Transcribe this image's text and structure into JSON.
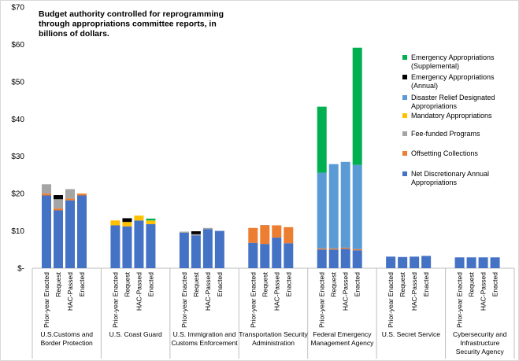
{
  "chart_data": {
    "type": "bar",
    "stacked": true,
    "title": [
      "Budget authority controlled for reprogramming",
      "through appropriations committee reports, in",
      "billions of dollars."
    ],
    "ylim": [
      0,
      70
    ],
    "yticks": [
      0,
      10,
      20,
      30,
      40,
      50,
      60,
      70
    ],
    "ytick_labels": [
      "$-",
      "$10",
      "$20",
      "$30",
      "$40",
      "$50",
      "$60",
      "$70"
    ],
    "grid": false,
    "legend_position": "right",
    "bar_labels": [
      "Prior-year Enacted",
      "Request",
      "HAC-Passed",
      "Enacted"
    ],
    "groups": [
      {
        "label": [
          "U.S.Customs and",
          "Border Protection"
        ]
      },
      {
        "label": [
          "U.S. Coast Guard"
        ]
      },
      {
        "label": [
          "U.S. Immigration and",
          "Customs Enforcement"
        ]
      },
      {
        "label": [
          "Transportation Security",
          "Administration"
        ]
      },
      {
        "label": [
          "Federal Emergency",
          "Management Agency"
        ]
      },
      {
        "label": [
          "U.S. Secret Service"
        ]
      },
      {
        "label": [
          "Cybersecurity and",
          "Infrastructure",
          "Security Agency"
        ]
      }
    ],
    "series": [
      {
        "name": [
          "Net Discretionary Annual",
          "Appropriations"
        ],
        "color": "#4472C4",
        "values": [
          [
            19.5,
            15.5,
            18.2,
            19.5
          ],
          [
            11.5,
            11.2,
            12.8,
            11.8
          ],
          [
            9.5,
            8.8,
            10.5,
            10.0
          ],
          [
            6.8,
            6.5,
            8.2,
            6.7
          ],
          [
            5.0,
            5.0,
            5.2,
            4.8
          ],
          [
            3.1,
            3.0,
            3.1,
            3.3
          ],
          [
            2.9,
            2.9,
            2.9,
            2.9
          ]
        ]
      },
      {
        "name": [
          "Offsetting Collections"
        ],
        "color": "#ED7D31",
        "values": [
          [
            0.5,
            0.5,
            0.5,
            0.5
          ],
          [
            0,
            0,
            0,
            0
          ],
          [
            0,
            0,
            0,
            0
          ],
          [
            4.0,
            5.0,
            3.3,
            4.3
          ],
          [
            0.3,
            0.3,
            0.3,
            0.3
          ],
          [
            0,
            0,
            0,
            0
          ],
          [
            0,
            0,
            0,
            0
          ]
        ]
      },
      {
        "name": [
          "Fee-funded Programs"
        ],
        "color": "#A5A5A5",
        "values": [
          [
            2.5,
            2.5,
            2.5,
            0
          ],
          [
            0,
            0,
            0,
            0
          ],
          [
            0.3,
            0.3,
            0.3,
            0
          ],
          [
            0,
            0.1,
            0,
            0
          ],
          [
            0,
            0,
            0,
            0
          ],
          [
            0,
            0,
            0,
            0
          ],
          [
            0,
            0,
            0,
            0
          ]
        ]
      },
      {
        "name": [
          "Mandatory Appropriations"
        ],
        "color": "#FFC000",
        "values": [
          [
            0,
            0,
            0,
            0
          ],
          [
            1.3,
            1.2,
            1.3,
            1.0
          ],
          [
            0,
            0,
            0,
            0
          ],
          [
            0,
            0,
            0,
            0
          ],
          [
            0,
            0,
            0,
            0
          ],
          [
            0,
            0,
            0,
            0
          ],
          [
            0,
            0,
            0,
            0
          ]
        ]
      },
      {
        "name": [
          "Disaster Relief Designated",
          "Appropriations"
        ],
        "color": "#5B9BD5",
        "values": [
          [
            0,
            0,
            0,
            0
          ],
          [
            0,
            0,
            0,
            0
          ],
          [
            0,
            0,
            0,
            0
          ],
          [
            0,
            0,
            0,
            0
          ],
          [
            20.3,
            22.6,
            23.0,
            22.6
          ],
          [
            0,
            0,
            0,
            0
          ],
          [
            0,
            0,
            0,
            0
          ]
        ]
      },
      {
        "name": [
          "Emergency Appropriations",
          "(Annual)"
        ],
        "color": "#000000",
        "values": [
          [
            0,
            1.1,
            0,
            0
          ],
          [
            0,
            1.0,
            0,
            0
          ],
          [
            0,
            0.8,
            0,
            0
          ],
          [
            0,
            0,
            0,
            0
          ],
          [
            0,
            0,
            0,
            0
          ],
          [
            0,
            0,
            0,
            0
          ],
          [
            0,
            0,
            0,
            0
          ]
        ]
      },
      {
        "name": [
          "Emergency Appropriations",
          "(Supplemental)"
        ],
        "color": "#00B050",
        "values": [
          [
            0,
            0,
            0,
            0
          ],
          [
            0,
            0,
            0,
            0.5
          ],
          [
            0,
            0,
            0,
            0
          ],
          [
            0,
            0,
            0,
            0
          ],
          [
            17.7,
            0,
            0,
            31.4
          ],
          [
            0,
            0,
            0,
            0
          ],
          [
            0,
            0,
            0,
            0
          ]
        ]
      }
    ],
    "legend_order": [
      6,
      5,
      4,
      3,
      2,
      1,
      0
    ]
  }
}
